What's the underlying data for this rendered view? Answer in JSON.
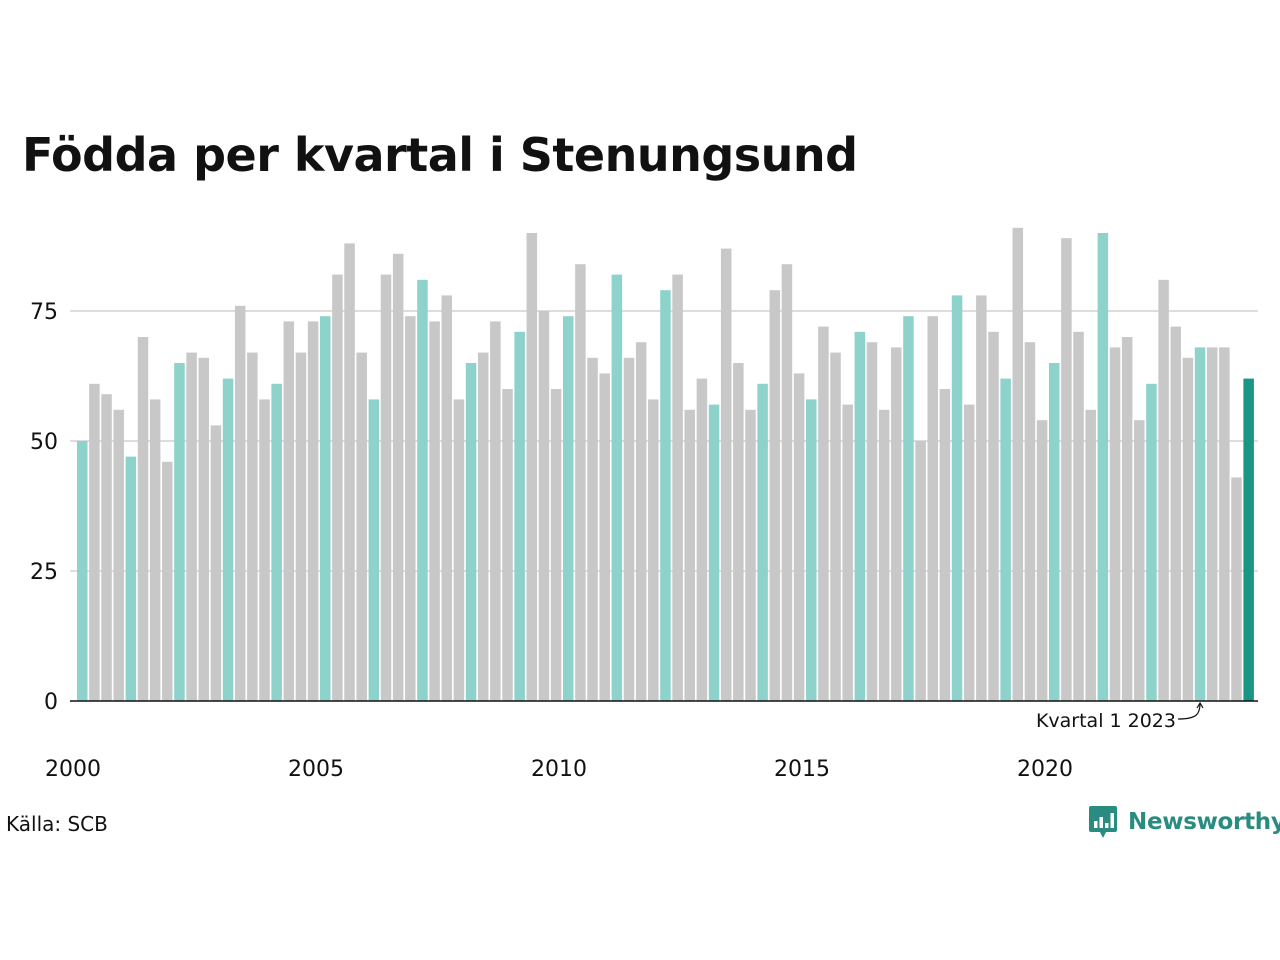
{
  "chart_data": {
    "type": "bar",
    "title": "Födda per kvartal i Stenungsund",
    "xlabel": "",
    "ylabel": "",
    "ylim": [
      0,
      92
    ],
    "yticks": [
      0,
      25,
      50,
      75
    ],
    "xtick_labels": [
      "2000",
      "2005",
      "2010",
      "2015",
      "2020"
    ],
    "grid": true,
    "start_year": 2000,
    "values": [
      50,
      61,
      59,
      56,
      47,
      70,
      58,
      46,
      65,
      67,
      66,
      53,
      62,
      76,
      67,
      58,
      61,
      73,
      67,
      73,
      74,
      82,
      88,
      67,
      58,
      82,
      86,
      74,
      81,
      73,
      78,
      58,
      65,
      67,
      73,
      60,
      71,
      90,
      75,
      60,
      74,
      84,
      66,
      63,
      82,
      66,
      69,
      58,
      79,
      82,
      56,
      62,
      57,
      87,
      65,
      56,
      61,
      79,
      84,
      63,
      58,
      72,
      67,
      57,
      71,
      69,
      56,
      68,
      74,
      50,
      74,
      60,
      78,
      57,
      78,
      71,
      62,
      91,
      69,
      54,
      65,
      89,
      71,
      56,
      90,
      68,
      70,
      54,
      61,
      81,
      72,
      66,
      68,
      68,
      68,
      43,
      62
    ],
    "annotation": "Kvartal 1 2023",
    "colors": {
      "q1": "#8dd3cb",
      "other": "#c8c8c8",
      "latest": "#1a9684",
      "grid": "#dddddd",
      "axis": "#111111"
    }
  },
  "source": "Källa: SCB",
  "logo": {
    "text": "Newsworthy",
    "icon": "newsworthy-chart-icon"
  }
}
